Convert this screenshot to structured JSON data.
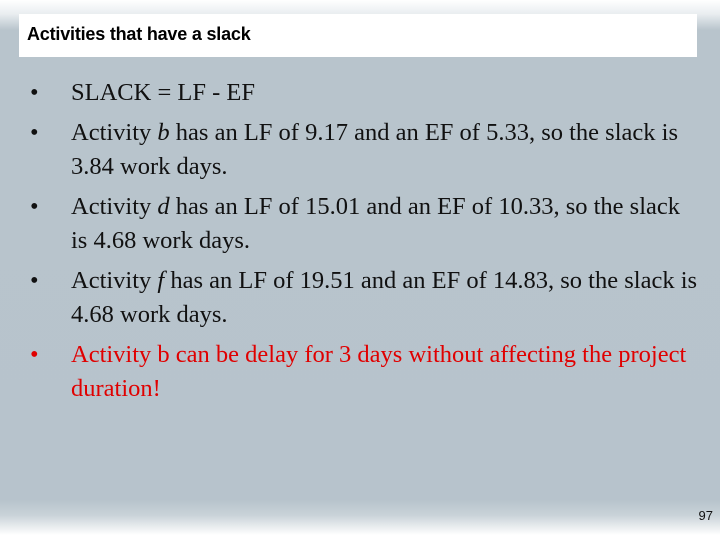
{
  "slide": {
    "title": "Activities that have a slack",
    "bullet_symbol": "•",
    "bullets": [
      {
        "text": "SLACK = LF - EF"
      },
      {
        "pre": "Activity ",
        "var": "b",
        "post": " has an LF of 9.17 and an EF of 5.33, so the slack is 3.84 work days."
      },
      {
        "pre": "Activity ",
        "var": "d",
        "post": " has an LF of 15.01 and an EF of 10.33, so the slack is 4.68 work days."
      },
      {
        "pre": "Activity ",
        "var": "f",
        "post": " has an LF of 19.51 and an EF of 14.83, so the slack is 4.68 work days."
      },
      {
        "text": "Activity b can be delay for 3 days without affecting the project duration!",
        "color": "#e00000"
      }
    ],
    "page_number": "97"
  }
}
